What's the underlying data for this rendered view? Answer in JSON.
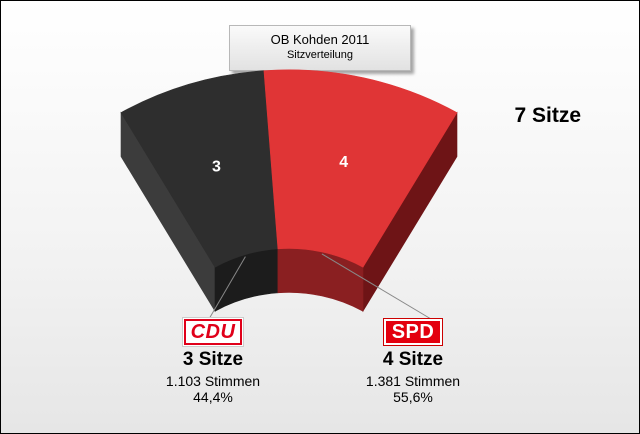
{
  "header": {
    "title": "OB Kohden 2011",
    "subtitle": "Sitzverteilung"
  },
  "total_label": "7 Sitze",
  "chart_data": {
    "type": "pie",
    "variant": "semicircle-3d",
    "title": "OB Kohden 2011",
    "subtitle": "Sitzverteilung",
    "total_seats": 7,
    "slices": [
      {
        "party": "CDU",
        "seats": 3,
        "seats_label": "3 Sitze",
        "votes_label": "1.103 Stimmen",
        "percent_label": "44,4%",
        "color": "#2e2e2e",
        "side_color": "#1c1c1c",
        "logo_text": "CDU"
      },
      {
        "party": "SPD",
        "seats": 4,
        "seats_label": "4 Sitze",
        "votes_label": "1.381 Stimmen",
        "percent_label": "55,6%",
        "color": "#e03536",
        "side_color": "#8a1f21",
        "logo_text": "SPD"
      }
    ]
  }
}
